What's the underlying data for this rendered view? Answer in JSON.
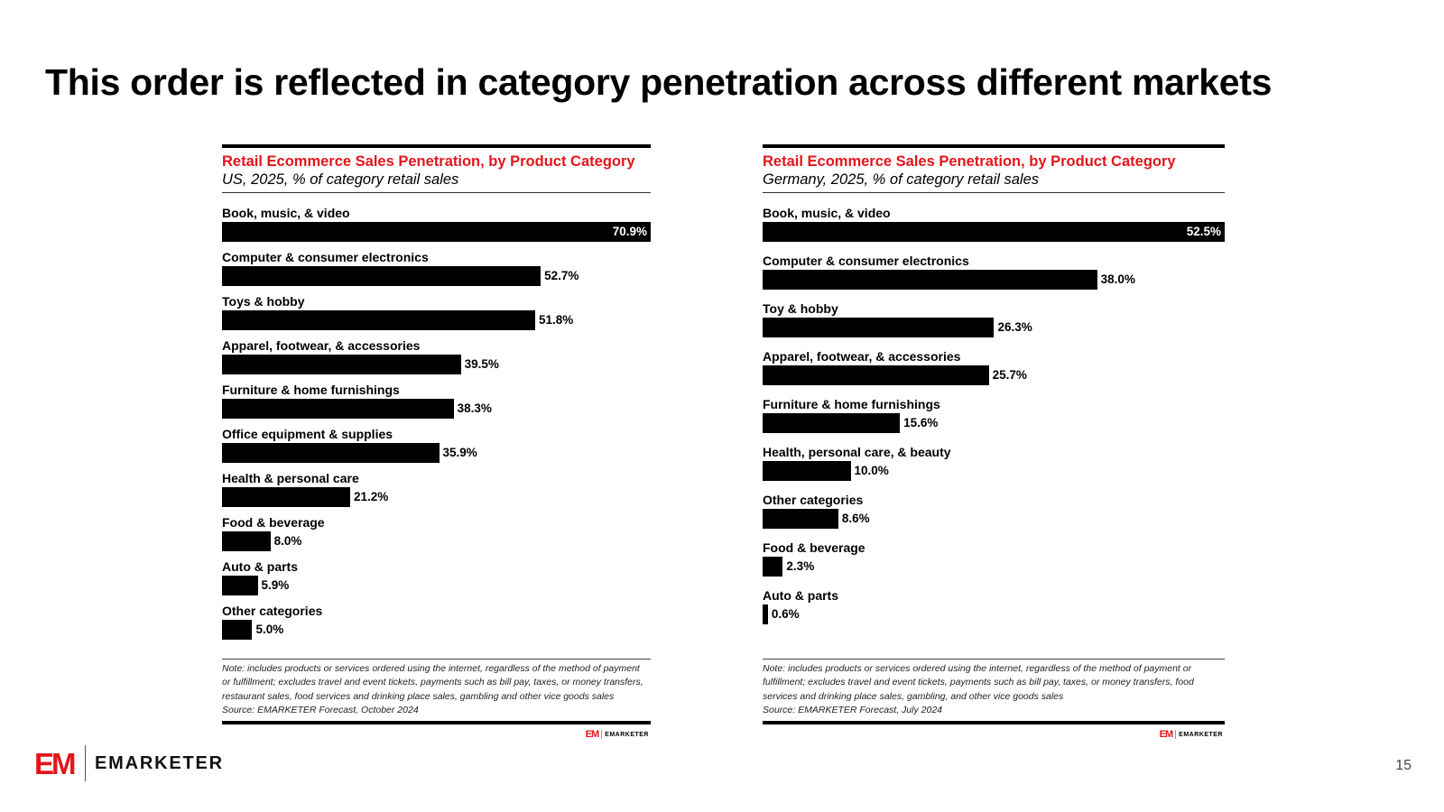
{
  "slide": {
    "title": "This order is reflected in category penetration across different markets",
    "page_number": "15",
    "brand": {
      "mark": "EM",
      "name": "EMARKETER"
    }
  },
  "colors": {
    "accent_red": "#e3151b",
    "bar": "#000000"
  },
  "chart_data": [
    {
      "type": "bar",
      "orientation": "horizontal",
      "title": "Retail Ecommerce Sales Penetration, by Product Category",
      "subtitle": "US, 2025, % of category retail sales",
      "categories": [
        "Book, music, & video",
        "Computer & consumer electronics",
        "Toys & hobby",
        "Apparel, footwear, & accessories",
        "Furniture & home furnishings",
        "Office equipment & supplies",
        "Health & personal care",
        "Food & beverage",
        "Auto & parts",
        "Other categories"
      ],
      "values": [
        70.9,
        52.7,
        51.8,
        39.5,
        38.3,
        35.9,
        21.2,
        8.0,
        5.9,
        5.0
      ],
      "labels": [
        "70.9%",
        "52.7%",
        "51.8%",
        "39.5%",
        "38.3%",
        "35.9%",
        "21.2%",
        "8.0%",
        "5.9%",
        "5.0%"
      ],
      "unit": "%",
      "xlim": [
        0,
        70.9
      ],
      "grid": false,
      "note": "Note: includes products or services ordered using the internet, regardless of the method of payment or fulfillment; excludes travel and event tickets, payments such as bill pay, taxes, or money transfers, restaurant sales, food services and drinking place sales, gambling and other vice goods sales",
      "source": "Source: EMARKETER Forecast, October 2024",
      "footer_logo": "EMARKETER"
    },
    {
      "type": "bar",
      "orientation": "horizontal",
      "title": "Retail Ecommerce Sales Penetration, by Product Category",
      "subtitle": "Germany, 2025, % of category retail sales",
      "categories": [
        "Book, music, & video",
        "Computer & consumer electronics",
        "Toy & hobby",
        "Apparel, footwear, & accessories",
        "Furniture & home furnishings",
        "Health, personal care, & beauty",
        "Other categories",
        "Food & beverage",
        "Auto & parts"
      ],
      "values": [
        52.5,
        38.0,
        26.3,
        25.7,
        15.6,
        10.0,
        8.6,
        2.3,
        0.6
      ],
      "labels": [
        "52.5%",
        "38.0%",
        "26.3%",
        "25.7%",
        "15.6%",
        "10.0%",
        "8.6%",
        "2.3%",
        "0.6%"
      ],
      "unit": "%",
      "xlim": [
        0,
        52.5
      ],
      "grid": false,
      "note": "Note: includes products or services ordered using the internet, regardless of the method of payment or fulfillment; excludes travel and event tickets, payments such as bill pay, taxes, or money transfers, food services and drinking place sales, gambling, and other vice goods sales",
      "source": "Source: EMARKETER Forecast, July 2024",
      "footer_logo": "EMARKETER"
    }
  ]
}
